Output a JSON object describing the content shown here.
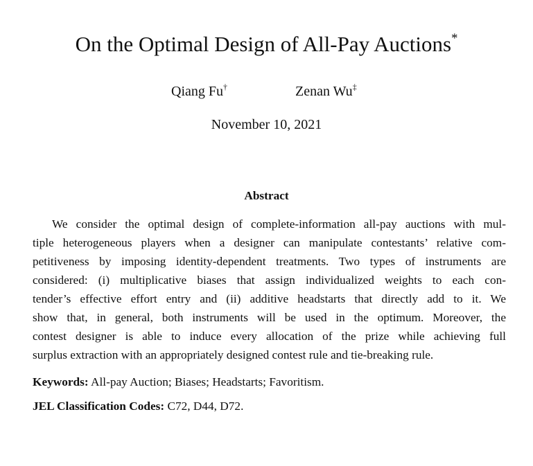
{
  "header": {
    "title": "On the Optimal Design of All-Pay Auctions",
    "title_mark": "*",
    "authors": [
      {
        "name": "Qiang Fu",
        "mark": "†"
      },
      {
        "name": "Zenan Wu",
        "mark": "‡"
      }
    ],
    "date": "November 10, 2021"
  },
  "abstract": {
    "heading": "Abstract",
    "lines": [
      "We consider the optimal design of complete-information all-pay auctions with mul-",
      "tiple heterogeneous players when a designer can manipulate contestants’ relative com-",
      "petitiveness by imposing identity-dependent treatments. Two types of instruments are",
      "considered: (i) multiplicative biases that assign individualized weights to each con-",
      "tender’s effective effort entry and (ii) additive headstarts that directly add to it. We",
      "show that, in general, both instruments will be used in the optimum. Moreover, the",
      "contest designer is able to induce every allocation of the prize while achieving full",
      "surplus extraction with an appropriately designed contest rule and tie-breaking rule."
    ]
  },
  "keywords": {
    "label": "Keywords:",
    "text": "All-pay Auction; Biases; Headstarts; Favoritism."
  },
  "jel": {
    "label": "JEL Classification Codes:",
    "text": "C72, D44, D72."
  }
}
